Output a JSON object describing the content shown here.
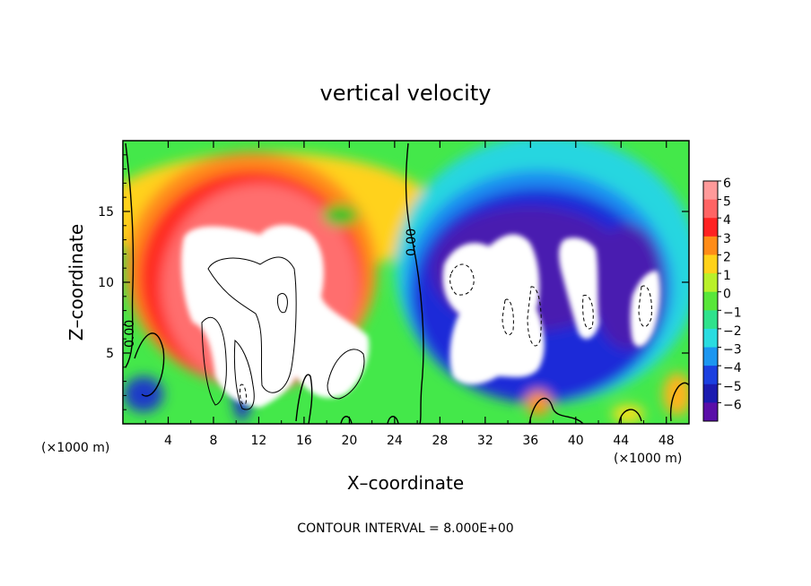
{
  "chart_data": {
    "type": "heatmap",
    "title": "vertical velocity",
    "xlabel": "X–coordinate",
    "ylabel": "Z–coordinate",
    "x_unit": "(×1000 m)",
    "footer": "CONTOUR INTERVAL = 8.000E+00",
    "xlim": [
      0,
      50
    ],
    "ylim": [
      0,
      20
    ],
    "xticks": [
      "4",
      "8",
      "12",
      "16",
      "20",
      "24",
      "28",
      "32",
      "36",
      "40",
      "44",
      "48"
    ],
    "yticks": [
      "5",
      "10",
      "15"
    ],
    "colorbar": {
      "labels": [
        "6",
        "5",
        "4",
        "3",
        "2",
        "1",
        "0",
        "−1",
        "−2",
        "−3",
        "−4",
        "−5",
        "−6"
      ],
      "range": [
        -6,
        6
      ]
    },
    "contour_labels": [
      "0.00",
      "0.00"
    ],
    "grid": false
  }
}
